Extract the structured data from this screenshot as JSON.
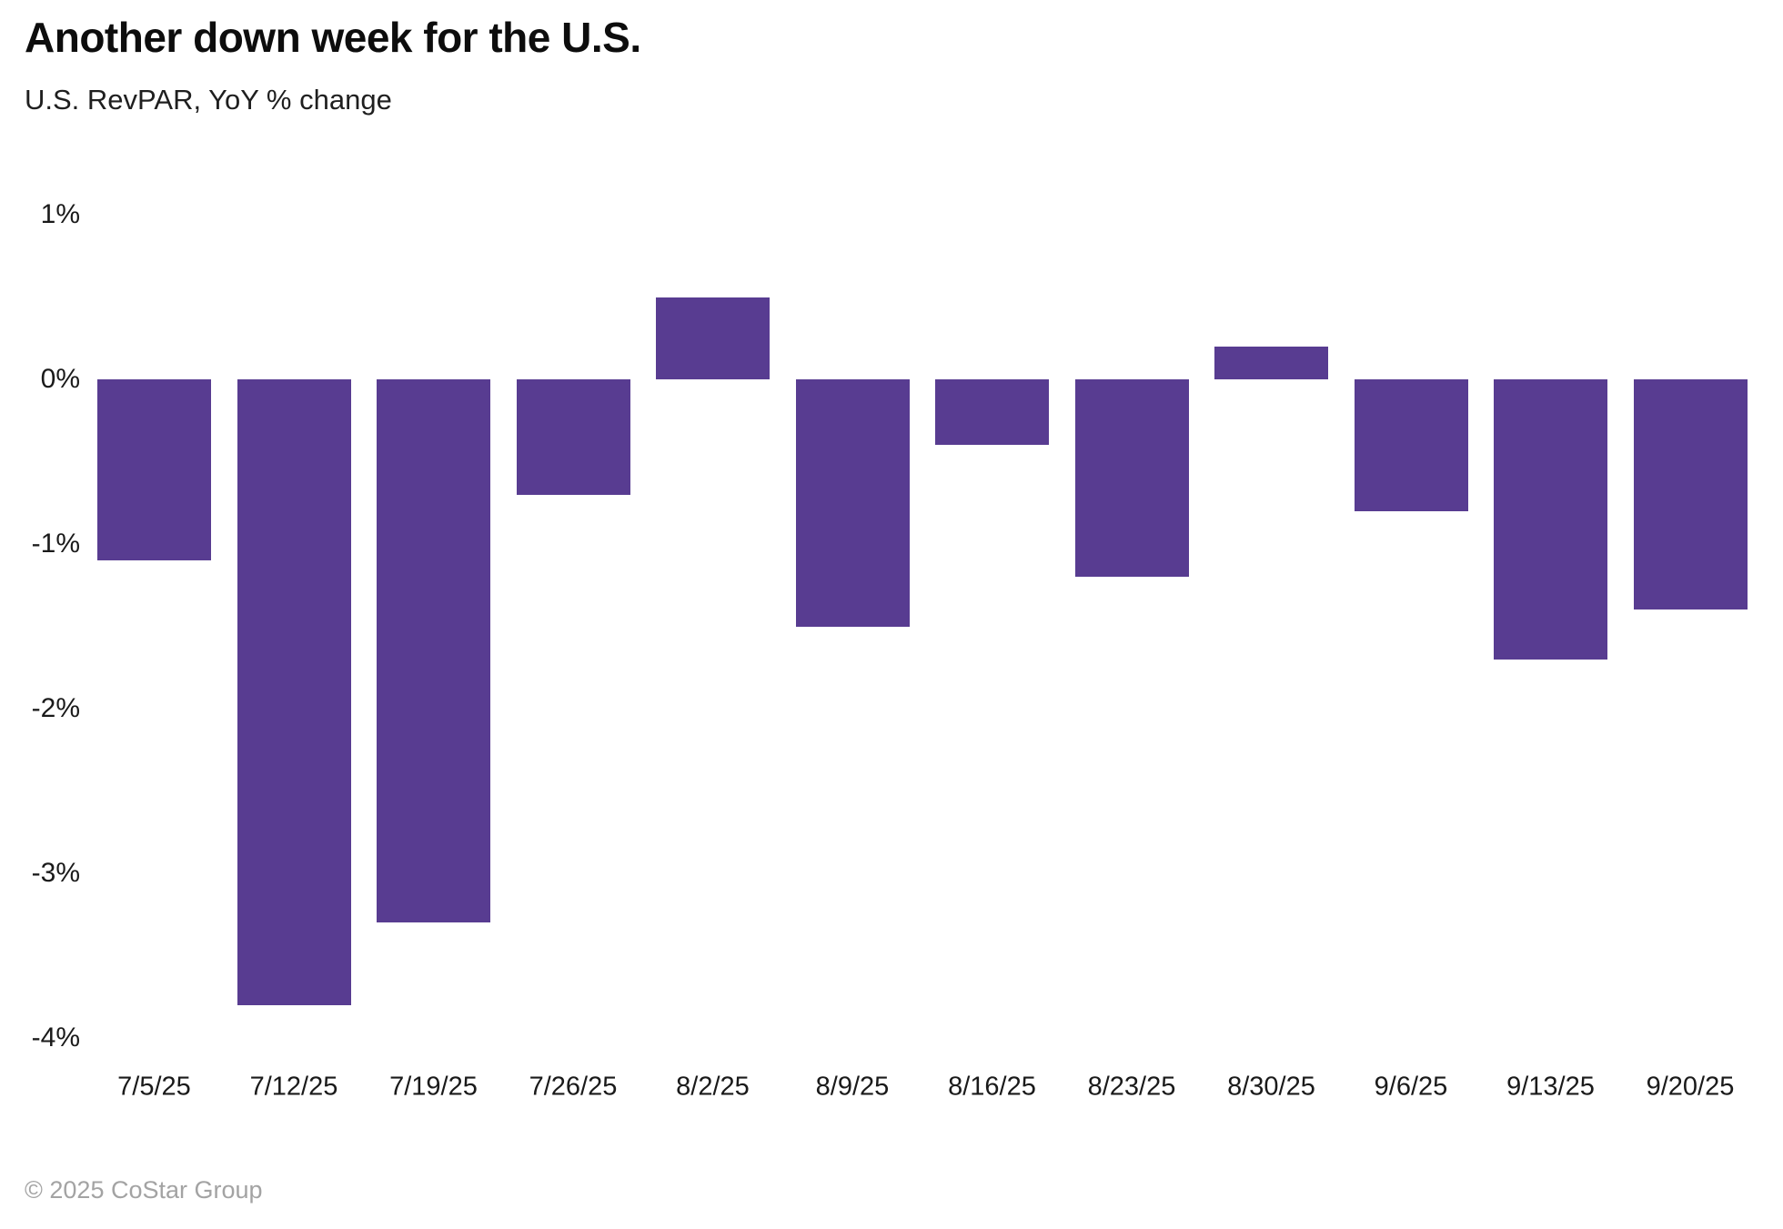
{
  "header": {
    "title": "Another down week for the U.S.",
    "subtitle": "U.S. RevPAR, YoY % change"
  },
  "footer": {
    "copyright": "© 2025 CoStar Group"
  },
  "colors": {
    "bar": "#583C91",
    "title_text": "#0d0d0d",
    "axis_text": "#1a1a1a",
    "footer_text": "#a3a3a3",
    "background": "#ffffff"
  },
  "chart_data": {
    "type": "bar",
    "title": "Another down week for the U.S.",
    "subtitle": "U.S. RevPAR, YoY % change",
    "xlabel": "",
    "ylabel": "YoY % change",
    "categories": [
      "7/5/25",
      "7/12/25",
      "7/19/25",
      "7/26/25",
      "8/2/25",
      "8/9/25",
      "8/16/25",
      "8/23/25",
      "8/30/25",
      "9/6/25",
      "9/13/25",
      "9/20/25"
    ],
    "values": [
      -1.1,
      -3.8,
      -3.3,
      -0.7,
      0.5,
      -1.5,
      -0.4,
      -1.2,
      0.2,
      -0.8,
      -1.7,
      -1.4
    ],
    "unit": "%",
    "ylim": [
      -4,
      1
    ],
    "y_ticks": [
      {
        "label": "1%",
        "value": 1
      },
      {
        "label": "0%",
        "value": 0
      },
      {
        "label": "-1%",
        "value": -1
      },
      {
        "label": "-2%",
        "value": -2
      },
      {
        "label": "-3%",
        "value": -3
      },
      {
        "label": "-4%",
        "value": -4
      }
    ],
    "grid": false,
    "legend_position": "none",
    "bar_color": "#583C91"
  }
}
